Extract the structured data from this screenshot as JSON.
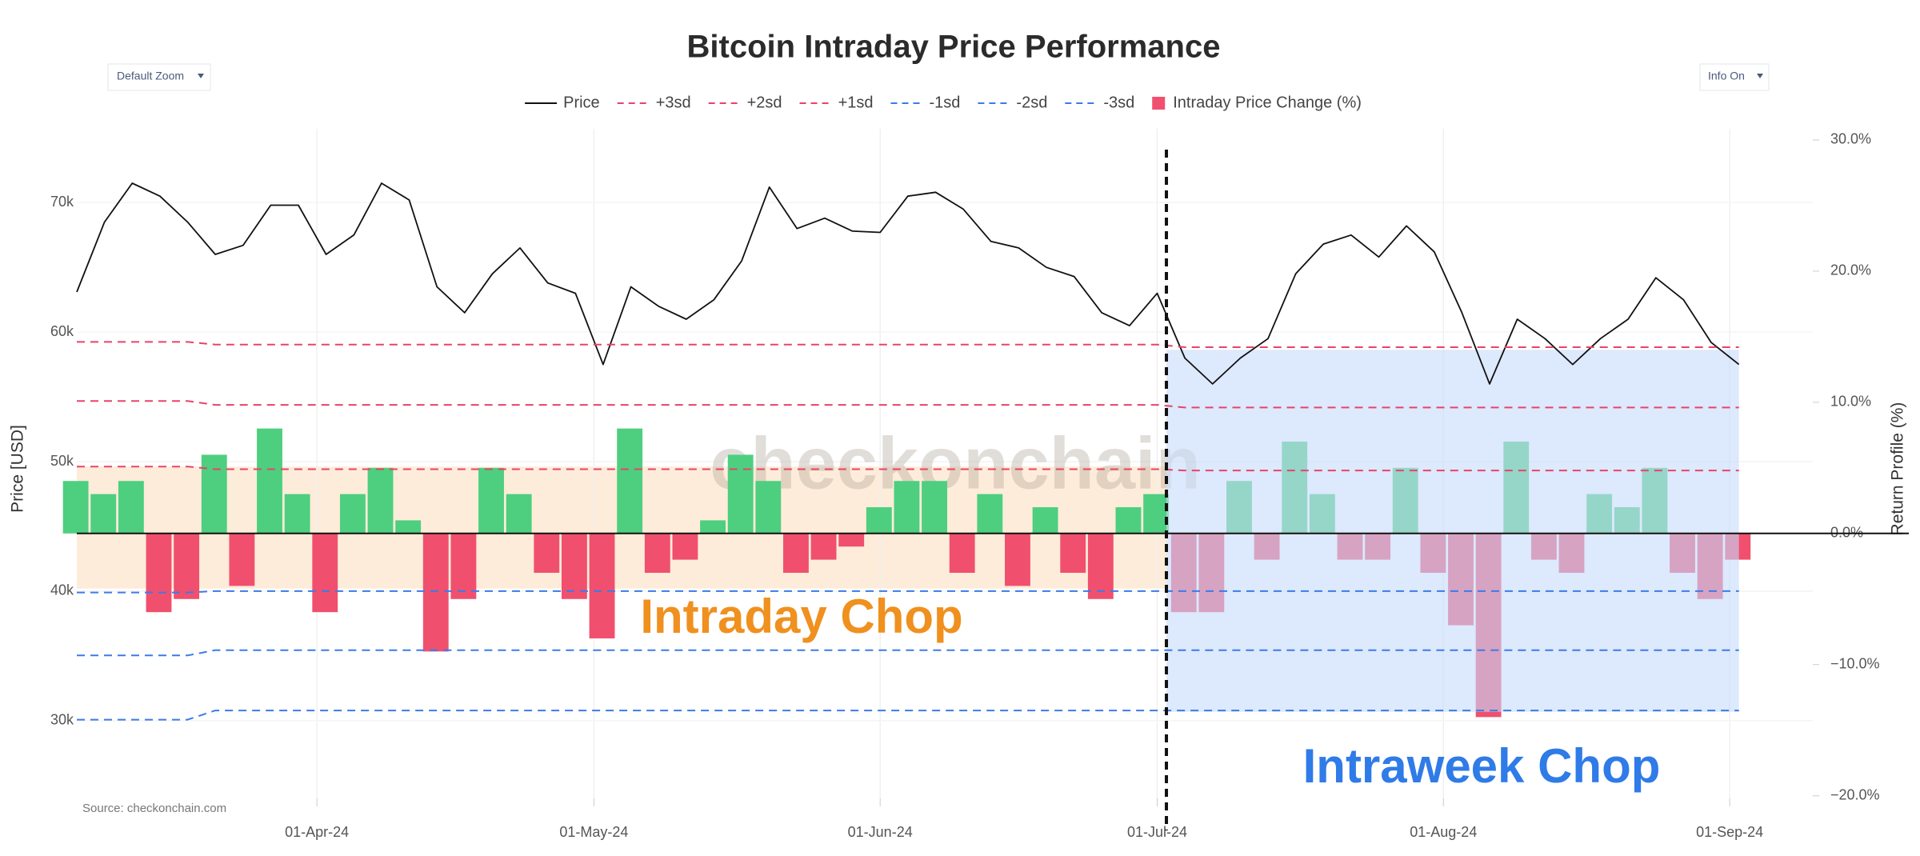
{
  "chart_data": {
    "type": "combo",
    "title": "Bitcoin Intraday Price Performance",
    "controls": [
      "Default Zoom",
      "Info On"
    ],
    "source": "Source: checkonchain.com",
    "watermark": "checkonchain",
    "y_label": "Price [USD]",
    "y2_label": "Return Profile (%)",
    "x": [
      "2024-03-06",
      "2024-03-09",
      "2024-03-12",
      "2024-03-15",
      "2024-03-18",
      "2024-03-21",
      "2024-03-24",
      "2024-03-27",
      "2024-03-30",
      "2024-04-02",
      "2024-04-05",
      "2024-04-08",
      "2024-04-11",
      "2024-04-14",
      "2024-04-17",
      "2024-04-20",
      "2024-04-23",
      "2024-04-26",
      "2024-04-29",
      "2024-05-02",
      "2024-05-05",
      "2024-05-08",
      "2024-05-11",
      "2024-05-14",
      "2024-05-17",
      "2024-05-20",
      "2024-05-23",
      "2024-05-26",
      "2024-05-29",
      "2024-06-01",
      "2024-06-04",
      "2024-06-07",
      "2024-06-10",
      "2024-06-13",
      "2024-06-16",
      "2024-06-19",
      "2024-06-22",
      "2024-06-25",
      "2024-06-28",
      "2024-07-01",
      "2024-07-04",
      "2024-07-07",
      "2024-07-10",
      "2024-07-13",
      "2024-07-16",
      "2024-07-19",
      "2024-07-22",
      "2024-07-25",
      "2024-07-28",
      "2024-07-31",
      "2024-08-03",
      "2024-08-06",
      "2024-08-09",
      "2024-08-12",
      "2024-08-15",
      "2024-08-18",
      "2024-08-21",
      "2024-08-24",
      "2024-08-27",
      "2024-08-30",
      "2024-09-02"
    ],
    "xlim": [
      "2024-03-06",
      "2024-09-10"
    ],
    "xticks": [
      {
        "value": "2024-04-01",
        "label": "01-Apr-24"
      },
      {
        "value": "2024-05-01",
        "label": "01-May-24"
      },
      {
        "value": "2024-06-01",
        "label": "01-Jun-24"
      },
      {
        "value": "2024-07-01",
        "label": "01-Jul-24"
      },
      {
        "value": "2024-08-01",
        "label": "01-Aug-24"
      },
      {
        "value": "2024-09-01",
        "label": "01-Sep-24"
      }
    ],
    "ylim": [
      24000,
      75700
    ],
    "yticks": [
      {
        "value": 30000,
        "label": "30k"
      },
      {
        "value": 40000,
        "label": "40k"
      },
      {
        "value": 50000,
        "label": "50k"
      },
      {
        "value": 60000,
        "label": "60k"
      },
      {
        "value": 70000,
        "label": "70k"
      }
    ],
    "y2lim": [
      -20.2,
      30.85
    ],
    "y2ticks": [
      {
        "value": -20,
        "label": "−20.0%"
      },
      {
        "value": -10,
        "label": "−10.0%"
      },
      {
        "value": 0,
        "label": "0.0%"
      },
      {
        "value": 10,
        "label": "10.0%"
      },
      {
        "value": 20,
        "label": "20.0%"
      },
      {
        "value": 30,
        "label": "30.0%"
      }
    ],
    "grid": true,
    "vline": "2024-07-02",
    "series": [
      {
        "name": "Price",
        "type": "line",
        "color": "#111111",
        "values": [
          63100,
          68500,
          71500,
          70500,
          68500,
          66000,
          66700,
          69800,
          69800,
          66000,
          67500,
          71500,
          70200,
          63500,
          61500,
          64500,
          66500,
          63800,
          63000,
          57500,
          63500,
          62000,
          61000,
          62500,
          65500,
          71200,
          68000,
          68800,
          67800,
          67700,
          70500,
          70800,
          69500,
          67000,
          66500,
          65000,
          64300,
          61500,
          60500,
          63000,
          58000,
          56000,
          58000,
          59500,
          64500,
          66800,
          67500,
          65800,
          68200,
          66200,
          61500,
          56000,
          61000,
          59500,
          57500,
          59500,
          61000,
          64200,
          62500,
          59200,
          57500
        ]
      },
      {
        "name": "+3sd",
        "type": "line",
        "axis": "y2",
        "dash": true,
        "color": "#e8436a",
        "values": [
          14.6,
          14.6,
          14.6,
          14.6,
          14.6,
          14.4,
          14.4,
          14.4,
          14.4,
          14.4,
          14.4,
          14.4,
          14.4,
          14.4,
          14.4,
          14.4,
          14.4,
          14.4,
          14.4,
          14.4,
          14.4,
          14.4,
          14.4,
          14.4,
          14.4,
          14.4,
          14.4,
          14.4,
          14.4,
          14.4,
          14.4,
          14.4,
          14.4,
          14.4,
          14.4,
          14.4,
          14.4,
          14.4,
          14.4,
          14.4,
          14.2,
          14.2,
          14.2,
          14.2,
          14.2,
          14.2,
          14.2,
          14.2,
          14.2,
          14.2,
          14.2,
          14.2,
          14.2,
          14.2,
          14.2,
          14.2,
          14.2,
          14.2,
          14.2,
          14.2,
          14.2
        ]
      },
      {
        "name": "+2sd",
        "type": "line",
        "axis": "y2",
        "dash": true,
        "color": "#e8436a",
        "values": [
          10.1,
          10.1,
          10.1,
          10.1,
          10.1,
          9.8,
          9.8,
          9.8,
          9.8,
          9.8,
          9.8,
          9.8,
          9.8,
          9.8,
          9.8,
          9.8,
          9.8,
          9.8,
          9.8,
          9.8,
          9.8,
          9.8,
          9.8,
          9.8,
          9.8,
          9.8,
          9.8,
          9.8,
          9.8,
          9.8,
          9.8,
          9.8,
          9.8,
          9.8,
          9.8,
          9.8,
          9.8,
          9.8,
          9.8,
          9.8,
          9.6,
          9.6,
          9.6,
          9.6,
          9.6,
          9.6,
          9.6,
          9.6,
          9.6,
          9.6,
          9.6,
          9.6,
          9.6,
          9.6,
          9.6,
          9.6,
          9.6,
          9.6,
          9.6,
          9.6,
          9.6
        ]
      },
      {
        "name": "+1sd",
        "type": "line",
        "axis": "y2",
        "dash": true,
        "color": "#e8436a",
        "values": [
          5.1,
          5.1,
          5.1,
          5.1,
          5.1,
          4.9,
          4.9,
          4.9,
          4.9,
          4.9,
          4.9,
          4.9,
          4.9,
          4.9,
          4.9,
          4.9,
          4.9,
          4.9,
          4.9,
          4.9,
          4.9,
          4.9,
          4.9,
          4.9,
          4.9,
          4.9,
          4.9,
          4.9,
          4.9,
          4.9,
          4.9,
          4.9,
          4.9,
          4.9,
          4.9,
          4.9,
          4.9,
          4.9,
          4.9,
          4.9,
          4.8,
          4.8,
          4.8,
          4.8,
          4.8,
          4.8,
          4.8,
          4.8,
          4.8,
          4.8,
          4.8,
          4.8,
          4.8,
          4.8,
          4.8,
          4.8,
          4.8,
          4.8,
          4.8,
          4.8,
          4.8
        ]
      },
      {
        "name": "-1sd",
        "type": "line",
        "axis": "y2",
        "dash": true,
        "color": "#3b7be8",
        "values": [
          -4.5,
          -4.5,
          -4.5,
          -4.5,
          -4.5,
          -4.4,
          -4.4,
          -4.4,
          -4.4,
          -4.4,
          -4.4,
          -4.4,
          -4.4,
          -4.4,
          -4.4,
          -4.4,
          -4.4,
          -4.4,
          -4.4,
          -4.4,
          -4.4,
          -4.4,
          -4.4,
          -4.4,
          -4.4,
          -4.4,
          -4.4,
          -4.4,
          -4.4,
          -4.4,
          -4.4,
          -4.4,
          -4.4,
          -4.4,
          -4.4,
          -4.4,
          -4.4,
          -4.4,
          -4.4,
          -4.4,
          -4.4,
          -4.4,
          -4.4,
          -4.4,
          -4.4,
          -4.4,
          -4.4,
          -4.4,
          -4.4,
          -4.4,
          -4.4,
          -4.4,
          -4.4,
          -4.4,
          -4.4,
          -4.4,
          -4.4,
          -4.4,
          -4.4,
          -4.4,
          -4.4
        ]
      },
      {
        "name": "-2sd",
        "type": "line",
        "axis": "y2",
        "dash": true,
        "color": "#3b7be8",
        "values": [
          -9.3,
          -9.3,
          -9.3,
          -9.3,
          -9.3,
          -8.9,
          -8.9,
          -8.9,
          -8.9,
          -8.9,
          -8.9,
          -8.9,
          -8.9,
          -8.9,
          -8.9,
          -8.9,
          -8.9,
          -8.9,
          -8.9,
          -8.9,
          -8.9,
          -8.9,
          -8.9,
          -8.9,
          -8.9,
          -8.9,
          -8.9,
          -8.9,
          -8.9,
          -8.9,
          -8.9,
          -8.9,
          -8.9,
          -8.9,
          -8.9,
          -8.9,
          -8.9,
          -8.9,
          -8.9,
          -8.9,
          -8.9,
          -8.9,
          -8.9,
          -8.9,
          -8.9,
          -8.9,
          -8.9,
          -8.9,
          -8.9,
          -8.9,
          -8.9,
          -8.9,
          -8.9,
          -8.9,
          -8.9,
          -8.9,
          -8.9,
          -8.9,
          -8.9,
          -8.9,
          -8.9
        ]
      },
      {
        "name": "-3sd",
        "type": "line",
        "axis": "y2",
        "dash": true,
        "color": "#3b7be8",
        "values": [
          -14.2,
          -14.2,
          -14.2,
          -14.2,
          -14.2,
          -13.5,
          -13.5,
          -13.5,
          -13.5,
          -13.5,
          -13.5,
          -13.5,
          -13.5,
          -13.5,
          -13.5,
          -13.5,
          -13.5,
          -13.5,
          -13.5,
          -13.5,
          -13.5,
          -13.5,
          -13.5,
          -13.5,
          -13.5,
          -13.5,
          -13.5,
          -13.5,
          -13.5,
          -13.5,
          -13.5,
          -13.5,
          -13.5,
          -13.5,
          -13.5,
          -13.5,
          -13.5,
          -13.5,
          -13.5,
          -13.5,
          -13.5,
          -13.5,
          -13.5,
          -13.5,
          -13.5,
          -13.5,
          -13.5,
          -13.5,
          -13.5,
          -13.5,
          -13.5,
          -13.5,
          -13.5,
          -13.5,
          -13.5,
          -13.5,
          -13.5,
          -13.5,
          -13.5,
          -13.5,
          -13.5
        ]
      },
      {
        "name": "Intraday Price Change (%)",
        "type": "bar",
        "axis": "y2",
        "color": "#f0506e",
        "positive_color": "#4dcf7f",
        "values": [
          4,
          3,
          4,
          -6,
          -5,
          6,
          -4,
          8,
          3,
          -6,
          3,
          5,
          1,
          -9,
          -5,
          5,
          3,
          -3,
          -5,
          -8,
          8,
          -3,
          -2,
          1,
          6,
          4,
          -3,
          -2,
          -1,
          2,
          4,
          4,
          -3,
          3,
          -4,
          2,
          -3,
          -5,
          2,
          3,
          -6,
          -6,
          4,
          -2,
          7,
          3,
          -2,
          -2,
          5,
          -3,
          -7,
          -14,
          7,
          -2,
          -3,
          3,
          2,
          5,
          -3,
          -5,
          -2
        ]
      }
    ],
    "annotations": [
      {
        "text": "Intraday Chop",
        "color": "#f0901e",
        "fill": "#fde9d2",
        "x": [
          "2024-03-06",
          "2024-07-02"
        ],
        "y": [
          -4.2,
          5.1
        ]
      },
      {
        "text": "Intraweek Chop",
        "color": "#2f7be8",
        "fill": "#c6dbfa",
        "x": [
          "2024-07-02",
          "2024-09-02"
        ],
        "y": [
          -13.6,
          14.0
        ]
      }
    ]
  }
}
